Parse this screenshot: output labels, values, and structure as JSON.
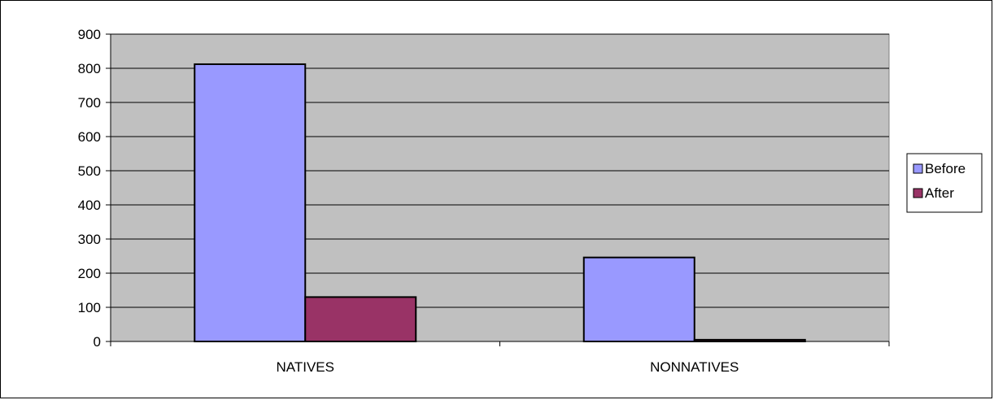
{
  "chart_data": {
    "type": "bar",
    "categories": [
      "NATIVES",
      "NONNATIVES"
    ],
    "series": [
      {
        "name": "Before",
        "values": [
          812,
          246
        ]
      },
      {
        "name": "After",
        "values": [
          130,
          5
        ]
      }
    ],
    "ylim": [
      0,
      900
    ],
    "yticks": [
      0,
      100,
      200,
      300,
      400,
      500,
      600,
      700,
      800,
      900
    ],
    "grid": true,
    "legend_position": "right",
    "plot_background": "#c0c0c0",
    "colors": {
      "Before": "#9999ff",
      "After": "#993366"
    }
  }
}
